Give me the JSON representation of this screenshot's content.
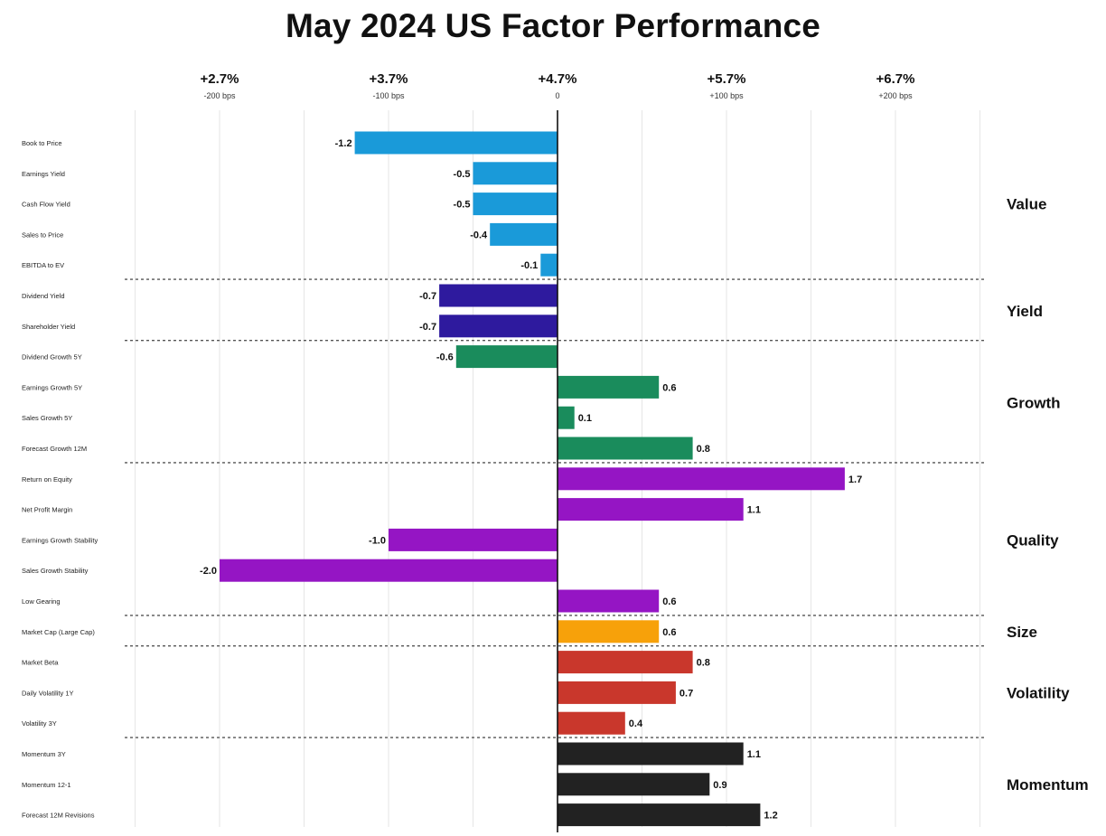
{
  "chart_data": {
    "type": "bar",
    "orientation": "horizontal",
    "title": "May 2024 US Factor Performance",
    "x_ticks": [
      {
        "main": "+2.7%",
        "sub": "-200 bps",
        "value": -2
      },
      {
        "main": "+3.7%",
        "sub": "-100 bps",
        "value": -1
      },
      {
        "main": "+4.7%",
        "sub": "0",
        "value": 0
      },
      {
        "main": "+5.7%",
        "sub": "+100 bps",
        "value": 1
      },
      {
        "main": "+6.7%",
        "sub": "+200 bps",
        "value": 2
      }
    ],
    "xlim": [
      -2.5,
      2.5
    ],
    "grid": true,
    "groups": [
      {
        "name": "Value",
        "color": "#1a9ad9",
        "items": [
          {
            "label": "Book to Price",
            "value": -1.2,
            "value_label": "-1.2"
          },
          {
            "label": "Earnings Yield",
            "value": -0.5,
            "value_label": "-0.5"
          },
          {
            "label": "Cash Flow Yield",
            "value": -0.5,
            "value_label": "-0.5"
          },
          {
            "label": "Sales to Price",
            "value": -0.4,
            "value_label": "-0.4"
          },
          {
            "label": "EBITDA to EV",
            "value": -0.1,
            "value_label": "-0.1"
          }
        ]
      },
      {
        "name": "Yield",
        "color": "#2e1a9e",
        "items": [
          {
            "label": "Dividend Yield",
            "value": -0.7,
            "value_label": "-0.7"
          },
          {
            "label": "Shareholder Yield",
            "value": -0.7,
            "value_label": "-0.7"
          }
        ]
      },
      {
        "name": "Growth",
        "color": "#1a8c5c",
        "items": [
          {
            "label": "Dividend Growth 5Y",
            "value": -0.6,
            "value_label": "-0.6"
          },
          {
            "label": "Earnings Growth 5Y",
            "value": 0.6,
            "value_label": "0.6"
          },
          {
            "label": "Sales Growth 5Y",
            "value": 0.1,
            "value_label": "0.1"
          },
          {
            "label": "Forecast Growth 12M",
            "value": 0.8,
            "value_label": "0.8"
          }
        ]
      },
      {
        "name": "Quality",
        "color": "#9515c4",
        "items": [
          {
            "label": "Return on Equity",
            "value": 1.7,
            "value_label": "1.7"
          },
          {
            "label": "Net Profit Margin",
            "value": 1.1,
            "value_label": "1.1"
          },
          {
            "label": "Earnings Growth Stability",
            "value": -1.0,
            "value_label": "-1.0"
          },
          {
            "label": "Sales Growth Stability",
            "value": -2.0,
            "value_label": "-2.0"
          },
          {
            "label": "Low Gearing",
            "value": 0.6,
            "value_label": "0.6"
          }
        ]
      },
      {
        "name": "Size",
        "color": "#f7a10a",
        "items": [
          {
            "label": "Market Cap (Large Cap)",
            "value": 0.6,
            "value_label": "0.6"
          }
        ]
      },
      {
        "name": "Volatility",
        "color": "#c9372c",
        "items": [
          {
            "label": "Market Beta",
            "value": 0.8,
            "value_label": "0.8"
          },
          {
            "label": "Daily Volatility 1Y",
            "value": 0.7,
            "value_label": "0.7"
          },
          {
            "label": "Volatility 3Y",
            "value": 0.4,
            "value_label": "0.4"
          }
        ]
      },
      {
        "name": "Momentum",
        "color": "#222222",
        "items": [
          {
            "label": "Momentum 3Y",
            "value": 1.1,
            "value_label": "1.1"
          },
          {
            "label": "Momentum 12-1",
            "value": 0.9,
            "value_label": "0.9"
          },
          {
            "label": "Forecast 12M Revisions",
            "value": 1.2,
            "value_label": "1.2"
          }
        ]
      }
    ]
  }
}
